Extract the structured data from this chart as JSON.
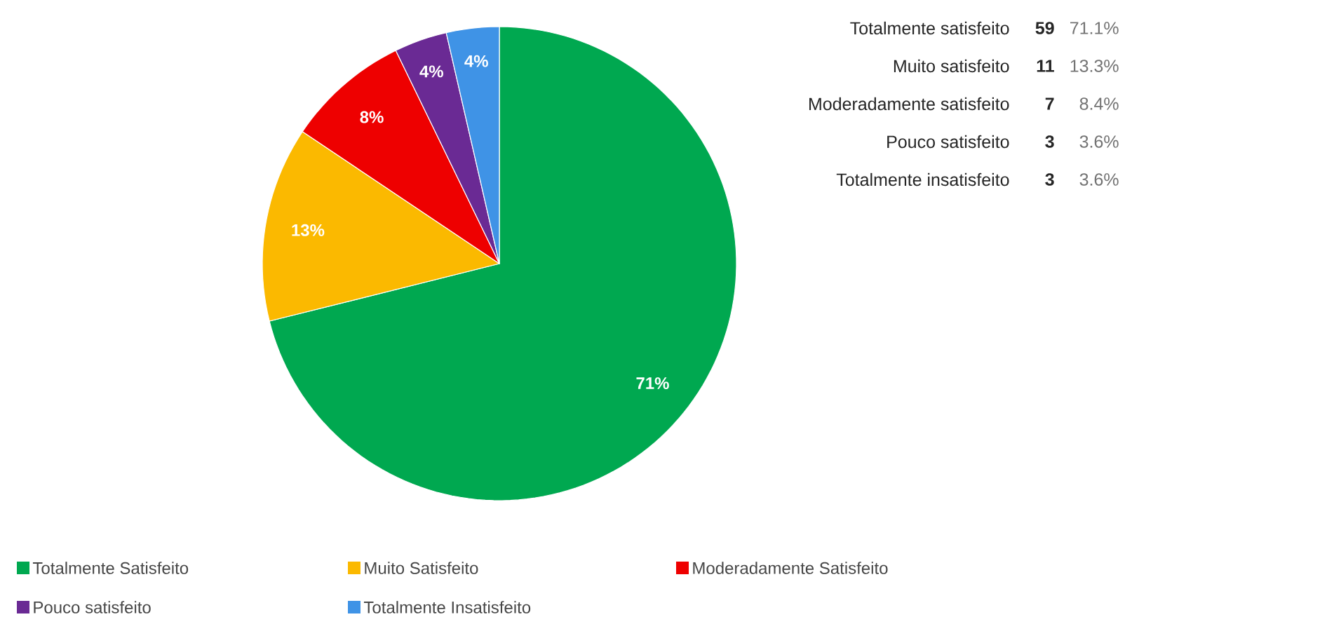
{
  "chart_data": {
    "type": "pie",
    "categories": [
      "Totalmente Satisfeito",
      "Muito Satisfeito",
      "Moderadamente Satisfeito",
      "Pouco satisfeito",
      "Totalmente Insatisfeito"
    ],
    "values": [
      71.1,
      13.3,
      8.4,
      3.6,
      3.6
    ],
    "colors": [
      "#00a850",
      "#fbb900",
      "#ee0000",
      "#6a2a94",
      "#3f93e6"
    ],
    "value_labels": [
      "71%",
      "13%",
      "8%",
      "4%",
      "4%"
    ],
    "legend": "bottom left",
    "annotations": [
      "Totalmente satisfeito",
      "59",
      "71.1%",
      "Muito satisfeito",
      "11",
      "13.3%",
      "Moderadamente satisfeito",
      "7",
      "8.4%",
      "Pouco satisfeito",
      "3",
      "3.6%",
      "Totalmente insatisfeito",
      "3",
      "3.6%"
    ]
  }
}
